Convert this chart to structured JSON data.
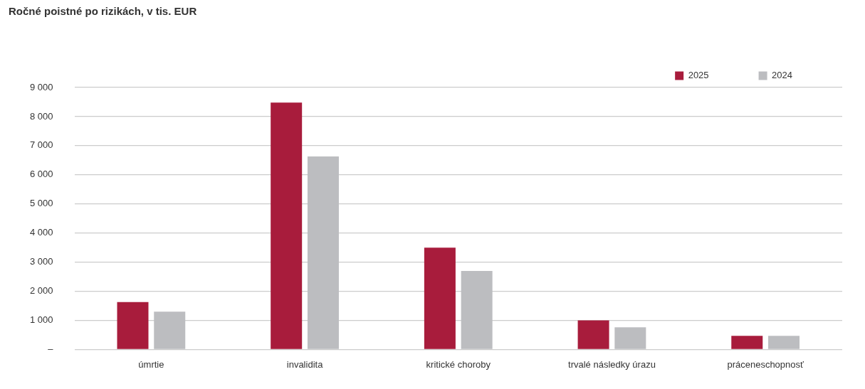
{
  "chart_data": {
    "type": "bar",
    "title": "Ročné poistné po rizikách, v tis. EUR",
    "categories": [
      "úmrtie",
      "invalidita",
      "kritické choroby",
      "trvalé následky úrazu",
      "práceneschopnosť"
    ],
    "series": [
      {
        "name": "2025",
        "color": "#a81c3c",
        "values": [
          1630,
          8480,
          3500,
          1000,
          470
        ]
      },
      {
        "name": "2024",
        "color": "#bcbdc0",
        "values": [
          1300,
          6630,
          2700,
          760,
          470
        ]
      }
    ],
    "ylim": [
      0,
      9000
    ],
    "yticks": [
      {
        "value": 0,
        "label": "–"
      },
      {
        "value": 1000,
        "label": "1 000"
      },
      {
        "value": 2000,
        "label": "2 000"
      },
      {
        "value": 3000,
        "label": "3 000"
      },
      {
        "value": 4000,
        "label": "4 000"
      },
      {
        "value": 5000,
        "label": "5 000"
      },
      {
        "value": 6000,
        "label": "6 000"
      },
      {
        "value": 7000,
        "label": "7 000"
      },
      {
        "value": 8000,
        "label": "8 000"
      },
      {
        "value": 9000,
        "label": "9 000"
      }
    ],
    "grid": "y",
    "legend": "top right"
  }
}
